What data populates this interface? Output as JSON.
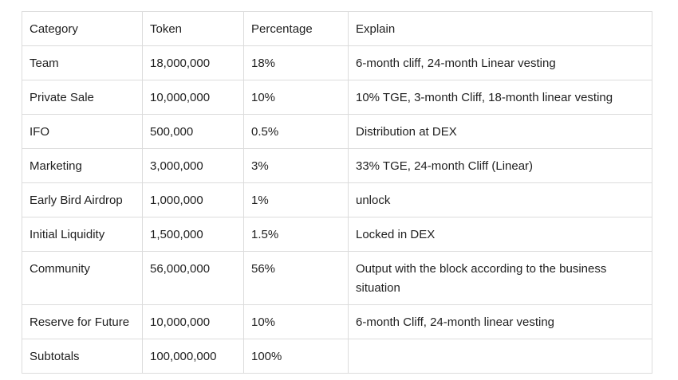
{
  "table": {
    "headers": {
      "category": "Category",
      "token": "Token",
      "percentage": "Percentage",
      "explain": "Explain"
    },
    "rows": [
      {
        "category": "Team",
        "token": "18,000,000",
        "percentage": "18%",
        "explain": "6-month cliff, 24-month Linear vesting"
      },
      {
        "category": "Private Sale",
        "token": "10,000,000",
        "percentage": "10%",
        "explain": "10% TGE, 3-month Cliff, 18-month linear vesting"
      },
      {
        "category": "IFO",
        "token": "500,000",
        "percentage": "0.5%",
        "explain": "Distribution at DEX"
      },
      {
        "category": "Marketing",
        "token": "3,000,000",
        "percentage": "3%",
        "explain": "33% TGE, 24-month Cliff (Linear)"
      },
      {
        "category": "Early Bird Airdrop",
        "token": "1,000,000",
        "percentage": "1%",
        "explain": "unlock"
      },
      {
        "category": "Initial Liquidity",
        "token": "1,500,000",
        "percentage": "1.5%",
        "explain": "Locked in DEX"
      },
      {
        "category": "Community",
        "token": "56,000,000",
        "percentage": "56%",
        "explain": "Output with the block according to the business situation"
      },
      {
        "category": "Reserve for Future",
        "token": "10,000,000",
        "percentage": "10%",
        "explain": "6-month Cliff, 24-month linear vesting"
      },
      {
        "category": "Subtotals",
        "token": "100,000,000",
        "percentage": "100%",
        "explain": ""
      }
    ]
  }
}
